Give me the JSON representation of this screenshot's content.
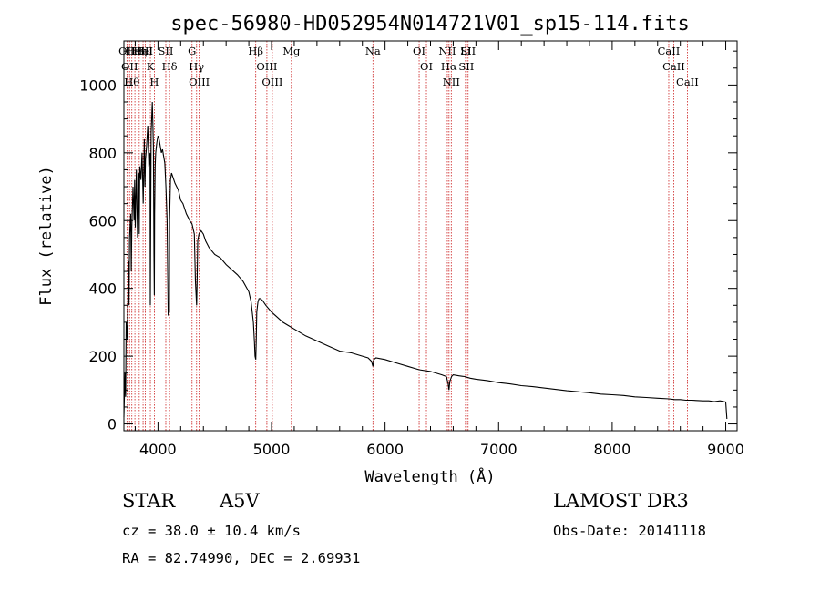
{
  "chart_data": {
    "type": "line",
    "title": "spec-56980-HD052954N014721V01_sp15-114.fits",
    "xlabel": "Wavelength (Å)",
    "ylabel": "Flux (relative)",
    "xlim": [
      3700,
      9100
    ],
    "ylim": [
      -20,
      1130
    ],
    "xticks": [
      4000,
      5000,
      6000,
      7000,
      8000,
      9000
    ],
    "yticks": [
      0,
      200,
      400,
      600,
      800,
      1000
    ],
    "series": [
      {
        "name": "flux",
        "x": [
          3700,
          3710,
          3715,
          3720,
          3730,
          3740,
          3745,
          3750,
          3760,
          3765,
          3770,
          3780,
          3790,
          3795,
          3800,
          3810,
          3820,
          3830,
          3835,
          3840,
          3850,
          3860,
          3870,
          3880,
          3885,
          3890,
          3900,
          3910,
          3920,
          3930,
          3933,
          3940,
          3950,
          3960,
          3965,
          3968,
          3970,
          3975,
          3980,
          3990,
          4000,
          4010,
          4020,
          4030,
          4040,
          4050,
          4060,
          4070,
          4080,
          4090,
          4100,
          4102,
          4110,
          4120,
          4130,
          4150,
          4180,
          4200,
          4220,
          4250,
          4280,
          4300,
          4320,
          4330,
          4340,
          4345,
          4350,
          4360,
          4380,
          4400,
          4420,
          4450,
          4500,
          4550,
          4600,
          4650,
          4700,
          4750,
          4800,
          4820,
          4840,
          4850,
          4855,
          4861,
          4865,
          4870,
          4880,
          4890,
          4900,
          4920,
          4950,
          5000,
          5050,
          5100,
          5150,
          5200,
          5300,
          5400,
          5500,
          5600,
          5700,
          5800,
          5850,
          5880,
          5893,
          5900,
          5920,
          6000,
          6100,
          6200,
          6300,
          6400,
          6500,
          6540,
          6555,
          6563,
          6570,
          6585,
          6600,
          6650,
          6700,
          6750,
          6800,
          6900,
          7000,
          7100,
          7200,
          7300,
          7400,
          7500,
          7600,
          7700,
          7800,
          7900,
          8000,
          8100,
          8200,
          8300,
          8400,
          8500,
          8550,
          8600,
          8650,
          8700,
          8800,
          8850,
          8900,
          8950,
          9000,
          9010
        ],
        "y": [
          20,
          150,
          80,
          300,
          250,
          480,
          350,
          550,
          620,
          450,
          580,
          700,
          600,
          720,
          580,
          750,
          550,
          740,
          560,
          760,
          720,
          800,
          650,
          840,
          700,
          780,
          820,
          880,
          760,
          800,
          350,
          860,
          950,
          820,
          500,
          380,
          620,
          760,
          800,
          830,
          850,
          840,
          820,
          800,
          810,
          790,
          770,
          700,
          600,
          320,
          330,
          600,
          720,
          740,
          730,
          710,
          690,
          660,
          650,
          620,
          600,
          590,
          560,
          420,
          350,
          430,
          540,
          560,
          570,
          560,
          540,
          520,
          500,
          490,
          470,
          455,
          440,
          420,
          390,
          360,
          300,
          240,
          200,
          190,
          240,
          330,
          360,
          370,
          370,
          365,
          350,
          330,
          315,
          300,
          290,
          280,
          260,
          245,
          230,
          215,
          210,
          200,
          195,
          185,
          170,
          190,
          195,
          190,
          180,
          170,
          160,
          155,
          145,
          140,
          120,
          100,
          125,
          140,
          145,
          142,
          140,
          135,
          132,
          128,
          122,
          118,
          113,
          110,
          106,
          102,
          98,
          95,
          92,
          88,
          86,
          84,
          80,
          78,
          76,
          74,
          72,
          72,
          70,
          70,
          68,
          68,
          66,
          68,
          65,
          15
        ]
      }
    ],
    "spectral_lines": [
      {
        "wl": 3727,
        "label": "OII"
      },
      {
        "wl": 3750,
        "label": "OII"
      },
      {
        "wl": 3770,
        "label": "Hθ"
      },
      {
        "wl": 3797,
        "label": "HeI"
      },
      {
        "wl": 3835,
        "label": "Hη"
      },
      {
        "wl": 3869,
        "label": "HeI"
      },
      {
        "wl": 3889,
        "label": "SII"
      },
      {
        "wl": 3933,
        "label": "K"
      },
      {
        "wl": 3968,
        "label": "H"
      },
      {
        "wl": 4069,
        "label": "SII"
      },
      {
        "wl": 4102,
        "label": "Hδ"
      },
      {
        "wl": 4300,
        "label": "G"
      },
      {
        "wl": 4340,
        "label": "Hγ"
      },
      {
        "wl": 4363,
        "label": "OIII"
      },
      {
        "wl": 4861,
        "label": "Hβ"
      },
      {
        "wl": 4959,
        "label": "OIII"
      },
      {
        "wl": 5007,
        "label": "OIII"
      },
      {
        "wl": 5175,
        "label": "Mg"
      },
      {
        "wl": 5893,
        "label": "Na"
      },
      {
        "wl": 6300,
        "label": "OI"
      },
      {
        "wl": 6364,
        "label": "OI"
      },
      {
        "wl": 6548,
        "label": "NII"
      },
      {
        "wl": 6563,
        "label": "Hα"
      },
      {
        "wl": 6583,
        "label": "NII"
      },
      {
        "wl": 6708,
        "label": "Li"
      },
      {
        "wl": 6716,
        "label": "SII"
      },
      {
        "wl": 6731,
        "label": "SII"
      },
      {
        "wl": 8498,
        "label": "CaII"
      },
      {
        "wl": 8542,
        "label": "CaII"
      },
      {
        "wl": 8662,
        "label": "CaII"
      }
    ]
  },
  "footer": {
    "object_class": "STAR",
    "subclass": "A5V",
    "survey": "LAMOST DR3",
    "cz": "cz = 38.0 ± 10.4 km/s",
    "obs_date": "Obs-Date: 20141118",
    "coords": "RA =  82.74990, DEC =   2.69931"
  },
  "colors": {
    "axis": "#000000",
    "line_marker": "#cc2222",
    "spectrum": "#000000"
  }
}
